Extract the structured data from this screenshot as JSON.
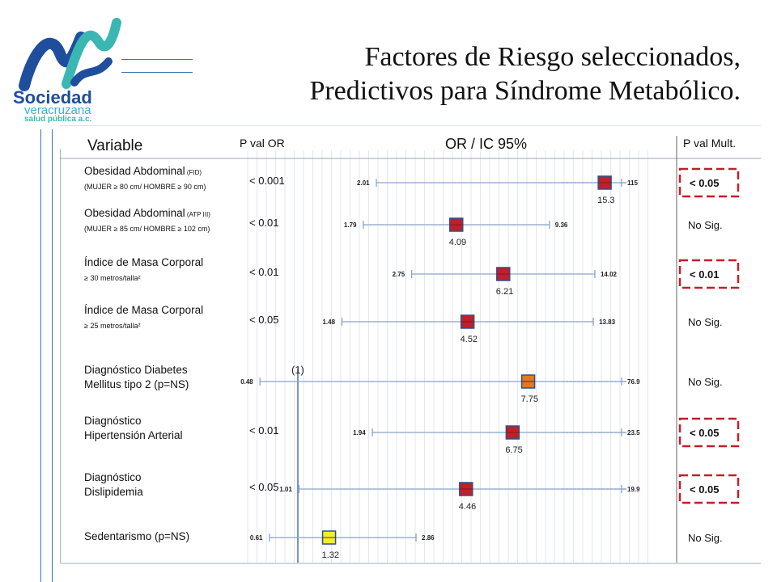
{
  "logo": {
    "line1": "Sociedad",
    "line2": "veracruzana",
    "line3": "salud pública a.c.",
    "colors": {
      "blue": "#1f4e9c",
      "teal": "#3bb7b3",
      "light": "#3ab0d8"
    }
  },
  "title": {
    "line1": "Factores de Riesgo seleccionados,",
    "line2": "Predictivos para Síndrome Metabólico."
  },
  "chart_data": {
    "type": "forest",
    "headers": {
      "variable": "Variable",
      "pval_or": "P val OR",
      "or_ic": "OR / IC 95%",
      "pval_mult": "P val Mult."
    },
    "reference_label": "(1)",
    "rows": [
      {
        "name": "Obesidad Abdominal",
        "name_note": " (FID)",
        "sub": "(MUJER ≥ 80 cm/ HOMBRE ≥ 90 cm)",
        "sub_small": false,
        "pval_or": "< 0.001",
        "lo": 2.01,
        "lo_label": "2.01",
        "hi": 115,
        "hi_label": "115",
        "or": 15.3,
        "or_label": "15.3",
        "pval_mult": "< 0.05",
        "significant": true,
        "marker_color": "#c0202a"
      },
      {
        "name": "Obesidad Abdominal",
        "name_note": " (ATP III)",
        "sub": "(MUJER ≥ 85 cm/ HOMBRE ≥ 102 cm)",
        "sub_small": false,
        "pval_or": "< 0.01",
        "lo": 1.79,
        "lo_label": "1.79",
        "hi": 9.36,
        "hi_label": "9.36",
        "or": 4.09,
        "or_label": "4.09",
        "pval_mult": "No Sig.",
        "significant": false,
        "marker_color": "#c0202a"
      },
      {
        "name": "Índice de Masa Corporal",
        "name_note": "",
        "sub": "≥ 30 metros/talla²",
        "sub_small": true,
        "pval_or": "< 0.01",
        "lo": 2.75,
        "lo_label": "2.75",
        "hi": 14.02,
        "hi_label": "14.02",
        "or": 6.21,
        "or_label": "6.21",
        "pval_mult": "< 0.01",
        "significant": true,
        "marker_color": "#c0202a"
      },
      {
        "name": "Índice de Masa Corporal",
        "name_note": "",
        "sub": "≥ 25 metros/talla²",
        "sub_small": true,
        "pval_or": "< 0.05",
        "lo": 1.48,
        "lo_label": "1.48",
        "hi": 13.83,
        "hi_label": "13.83",
        "or": 4.52,
        "or_label": "4.52",
        "pval_mult": "No Sig.",
        "significant": false,
        "marker_color": "#c0202a"
      },
      {
        "name": "Diagnóstico Diabetes",
        "name_note": "",
        "sub": "Mellitus tipo 2 (p=NS)",
        "sub_small": false,
        "pval_or": "",
        "lo": 0.48,
        "lo_label": "0.48",
        "hi": 76.9,
        "hi_label": "76.9",
        "or": 7.75,
        "or_label": "7.75",
        "pval_mult": "No Sig.",
        "significant": false,
        "marker_color": "#e07a20"
      },
      {
        "name": "Diagnóstico",
        "name_note": "",
        "sub": "Hipertensión Arterial",
        "sub_small": false,
        "pval_or": "< 0.01",
        "lo": 1.94,
        "lo_label": "1.94",
        "hi": 23.5,
        "hi_label": "23.5",
        "or": 6.75,
        "or_label": "6.75",
        "pval_mult": "< 0.05",
        "significant": true,
        "marker_color": "#c0202a"
      },
      {
        "name": "Diagnóstico",
        "name_note": "",
        "sub": "Dislipidemia",
        "sub_small": false,
        "pval_or": "< 0.05",
        "lo": 1.01,
        "lo_label": "1.01",
        "hi": 19.9,
        "hi_label": "19.9",
        "or": 4.46,
        "or_label": "4.46",
        "pval_mult": "< 0.05",
        "significant": true,
        "marker_color": "#c0202a"
      },
      {
        "name": "Sedentarismo (p=NS)",
        "name_note": "",
        "sub": "",
        "sub_small": false,
        "pval_or": "",
        "lo": 0.61,
        "lo_label": "0.61",
        "hi": 2.86,
        "hi_label": "2.86",
        "or": 1.32,
        "or_label": "1.32",
        "pval_mult": "No Sig.",
        "significant": false,
        "marker_color": "#f2ee2a"
      }
    ],
    "colors": {
      "line": "#8aa4c8",
      "reference": "#4a6fb5",
      "highlight_box": "#c0202a",
      "marker_border": "#2f4f8f"
    }
  }
}
